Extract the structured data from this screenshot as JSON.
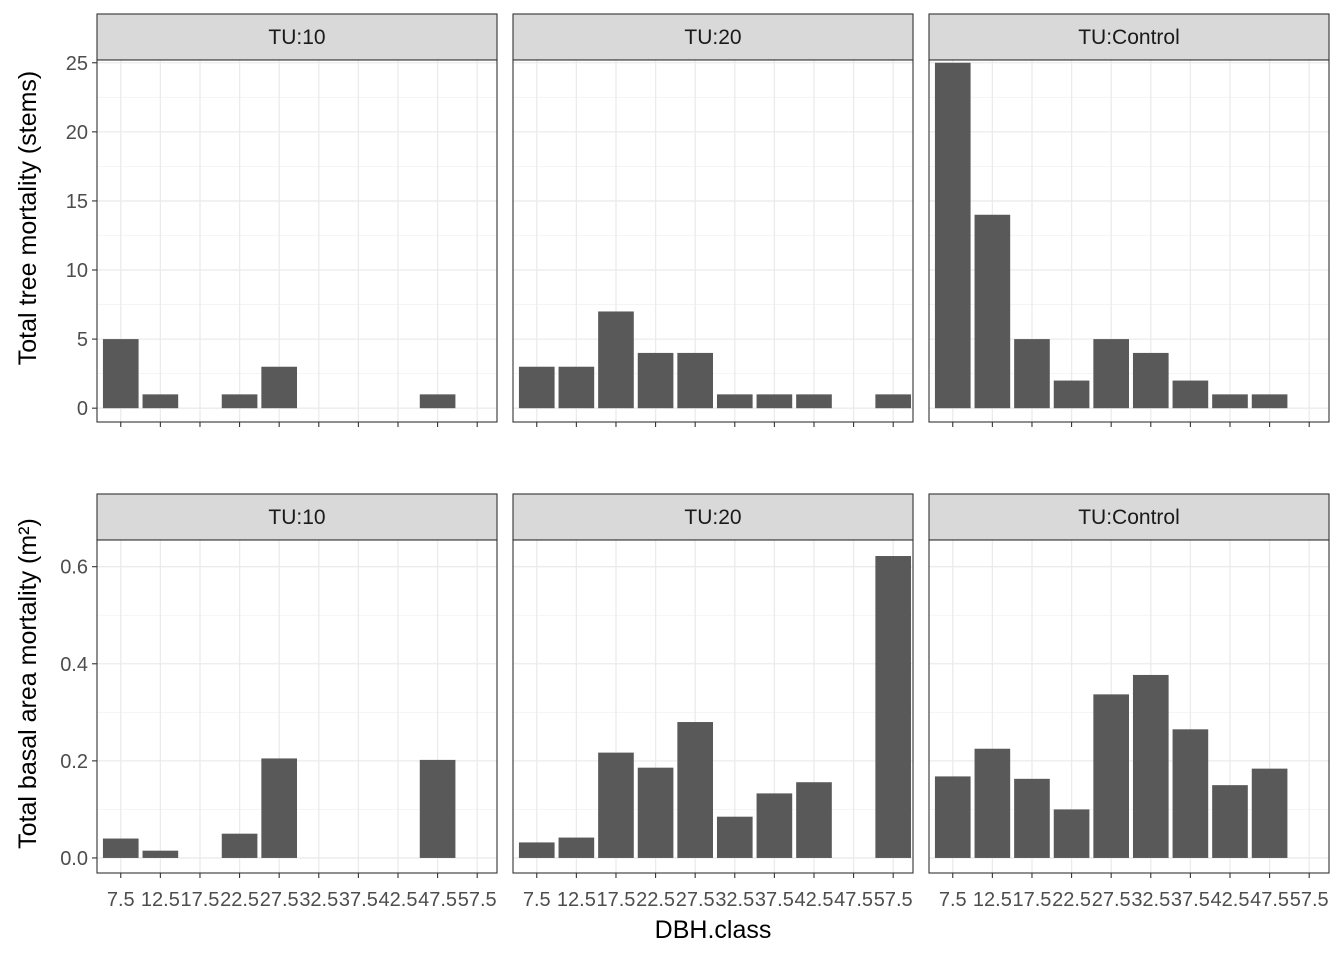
{
  "chart_data": {
    "type": "bar",
    "xlabel": "DBH.class",
    "facets": [
      "TU:10",
      "TU:20",
      "TU:Control"
    ],
    "categories": [
      "7.5",
      "12.5",
      "17.5",
      "22.5",
      "27.5",
      "32.5",
      "37.5",
      "42.5",
      "47.5",
      "57.5"
    ],
    "grid": true,
    "bar_color": "#595959",
    "panels": [
      {
        "ylabel": "Total tree mortality (stems)",
        "ylim": [
          -1,
          25.2
        ],
        "yticks": [
          0,
          5,
          10,
          15,
          20,
          25
        ],
        "show_x_tick_labels": false,
        "series": [
          {
            "facet": "TU:10",
            "values": [
              5,
              1,
              null,
              1,
              3,
              null,
              null,
              null,
              1,
              null
            ]
          },
          {
            "facet": "TU:20",
            "values": [
              3,
              3,
              7,
              4,
              4,
              1,
              1,
              1,
              null,
              1
            ]
          },
          {
            "facet": "TU:Control",
            "values": [
              25,
              14,
              5,
              2,
              5,
              4,
              2,
              1,
              1,
              null
            ]
          }
        ]
      },
      {
        "ylabel": "Total basal area mortality (m²)",
        "ylim": [
          -0.031,
          0.655
        ],
        "yticks": [
          0.0,
          0.2,
          0.4,
          0.6
        ],
        "ytick_labels": [
          "0.0",
          "0.2",
          "0.4",
          "0.6"
        ],
        "show_x_tick_labels": true,
        "series": [
          {
            "facet": "TU:10",
            "values": [
              0.04,
              0.015,
              null,
              0.05,
              0.205,
              null,
              null,
              null,
              0.202,
              null
            ]
          },
          {
            "facet": "TU:20",
            "values": [
              0.032,
              0.042,
              0.217,
              0.186,
              0.28,
              0.085,
              0.133,
              0.156,
              null,
              0.622
            ]
          },
          {
            "facet": "TU:Control",
            "values": [
              0.168,
              0.225,
              0.163,
              0.1,
              0.337,
              0.377,
              0.265,
              0.15,
              0.184,
              null
            ]
          }
        ]
      }
    ]
  }
}
